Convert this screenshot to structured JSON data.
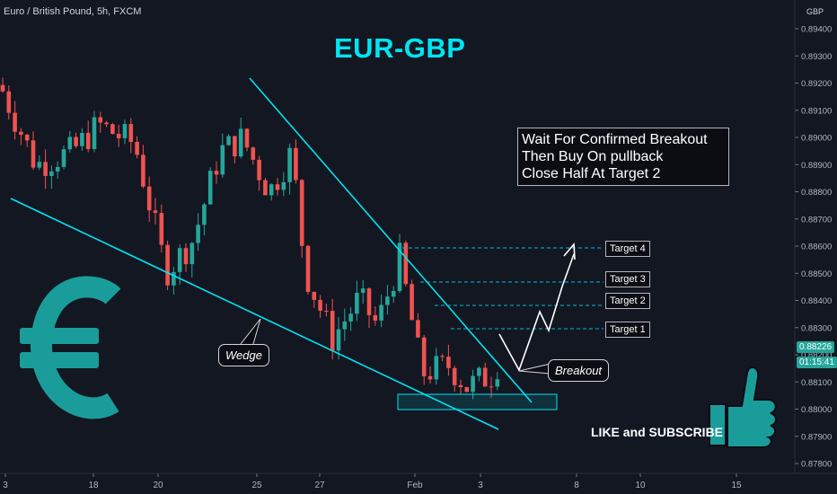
{
  "header": {
    "label": "Euro / British Pound, 5h, FXCM"
  },
  "title": "EUR-GBP",
  "currency": "GBP",
  "note": {
    "lines": [
      "Wait For Confirmed Breakout",
      "Then Buy On pullback",
      "Close Half At Target 2"
    ]
  },
  "targets": [
    {
      "label": "Target 4",
      "price": 0.88595
    },
    {
      "label": "Target 3",
      "price": 0.88465
    },
    {
      "label": "Target 2",
      "price": 0.88385
    },
    {
      "label": "Target 1",
      "price": 0.88302
    }
  ],
  "wedge_label": "Wedge",
  "breakout_label": "Breakout",
  "cta": "LIKE and SUBSCRIBE",
  "price_tags": {
    "last": "0.88226",
    "countdown": "01:15:41"
  },
  "colors": {
    "background": "#131722",
    "up": "#26a69a",
    "down": "#ef5350",
    "trendline": "#00e5f3",
    "accent_icon": "#1a9c9a",
    "target_line": "#00bcd4"
  },
  "icons": {
    "currency": "euro-icon",
    "like": "thumbs-up-icon"
  },
  "chart_data": {
    "type": "candlestick",
    "symbol": "EUR-GBP",
    "y_ticks": [
      "0.89400",
      "0.89300",
      "0.89200",
      "0.89100",
      "0.89000",
      "0.88900",
      "0.88800",
      "0.88700",
      "0.88600",
      "0.88500",
      "0.88400",
      "0.88300",
      "0.88200",
      "0.88100",
      "0.88000",
      "0.87900",
      "0.87800"
    ],
    "x_ticks": [
      "3",
      "18",
      "20",
      "25",
      "27",
      "Feb",
      "3",
      "8",
      "10",
      "15"
    ],
    "ylim": [
      0.87745,
      0.89485
    ],
    "annotations": [
      "Wedge",
      "Breakout",
      "Target 1",
      "Target 2",
      "Target 3",
      "Target 4"
    ]
  }
}
